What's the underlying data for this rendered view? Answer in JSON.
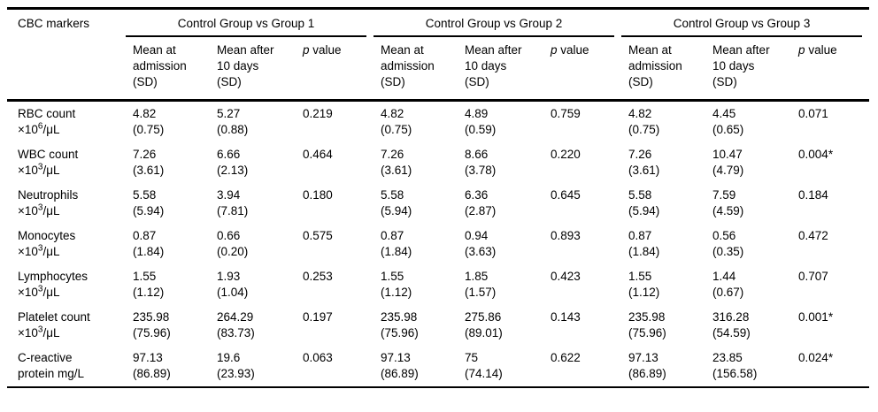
{
  "table": {
    "corner_header": "CBC markers",
    "groups": [
      {
        "label": "Control Group vs Group 1"
      },
      {
        "label": "Control Group vs Group 2"
      },
      {
        "label": "Control Group vs Group 3"
      }
    ],
    "sub_headers": {
      "admission": "Mean at admission (SD)",
      "after": "Mean after 10 days (SD)",
      "p_italic": "p",
      "p_rest": "value"
    },
    "colors": {
      "text": "#000000",
      "background": "#ffffff",
      "rule": "#000000"
    },
    "rows": [
      {
        "name": "RBC count",
        "unit_pre": "×10",
        "unit_sup": "6",
        "unit_post": "/μL",
        "groups": [
          {
            "adm_mean": "4.82",
            "adm_sd": "(0.75)",
            "after_mean": "5.27",
            "after_sd": "(0.88)",
            "p": "0.219"
          },
          {
            "adm_mean": "4.82",
            "adm_sd": "(0.75)",
            "after_mean": "4.89",
            "after_sd": "(0.59)",
            "p": "0.759"
          },
          {
            "adm_mean": "4.82",
            "adm_sd": "(0.75)",
            "after_mean": "4.45",
            "after_sd": "(0.65)",
            "p": "0.071"
          }
        ]
      },
      {
        "name": "WBC count",
        "unit_pre": "×10",
        "unit_sup": "3",
        "unit_post": "/μL",
        "groups": [
          {
            "adm_mean": "7.26",
            "adm_sd": "(3.61)",
            "after_mean": "6.66",
            "after_sd": "(2.13)",
            "p": "0.464"
          },
          {
            "adm_mean": "7.26",
            "adm_sd": "(3.61)",
            "after_mean": "8.66",
            "after_sd": "(3.78)",
            "p": "0.220"
          },
          {
            "adm_mean": "7.26",
            "adm_sd": "(3.61)",
            "after_mean": "10.47",
            "after_sd": "(4.79)",
            "p": "0.004*"
          }
        ]
      },
      {
        "name": "Neutrophils",
        "unit_pre": "×10",
        "unit_sup": "3",
        "unit_post": "/μL",
        "groups": [
          {
            "adm_mean": "5.58",
            "adm_sd": "(5.94)",
            "after_mean": "3.94",
            "after_sd": "(7.81)",
            "p": "0.180"
          },
          {
            "adm_mean": "5.58",
            "adm_sd": "(5.94)",
            "after_mean": "6.36",
            "after_sd": "(2.87)",
            "p": "0.645"
          },
          {
            "adm_mean": "5.58",
            "adm_sd": "(5.94)",
            "after_mean": "7.59",
            "after_sd": "(4.59)",
            "p": "0.184"
          }
        ]
      },
      {
        "name": "Monocytes",
        "unit_pre": "×10",
        "unit_sup": "3",
        "unit_post": "/μL",
        "groups": [
          {
            "adm_mean": "0.87",
            "adm_sd": "(1.84)",
            "after_mean": "0.66",
            "after_sd": "(0.20)",
            "p": "0.575"
          },
          {
            "adm_mean": "0.87",
            "adm_sd": "(1.84)",
            "after_mean": "0.94",
            "after_sd": "(3.63)",
            "p": "0.893"
          },
          {
            "adm_mean": "0.87",
            "adm_sd": "(1.84)",
            "after_mean": "0.56",
            "after_sd": "(0.35)",
            "p": "0.472"
          }
        ]
      },
      {
        "name": "Lymphocytes",
        "unit_pre": "×10",
        "unit_sup": "3",
        "unit_post": "/μL",
        "groups": [
          {
            "adm_mean": "1.55",
            "adm_sd": "(1.12)",
            "after_mean": "1.93",
            "after_sd": "(1.04)",
            "p": "0.253"
          },
          {
            "adm_mean": "1.55",
            "adm_sd": "(1.12)",
            "after_mean": "1.85",
            "after_sd": "(1.57)",
            "p": "0.423"
          },
          {
            "adm_mean": "1.55",
            "adm_sd": "(1.12)",
            "after_mean": "1.44",
            "after_sd": "(0.67)",
            "p": "0.707"
          }
        ]
      },
      {
        "name": "Platelet count",
        "unit_pre": "×10",
        "unit_sup": "3",
        "unit_post": "/μL",
        "groups": [
          {
            "adm_mean": "235.98",
            "adm_sd": "(75.96)",
            "after_mean": "264.29",
            "after_sd": "(83.73)",
            "p": "0.197"
          },
          {
            "adm_mean": "235.98",
            "adm_sd": "(75.96)",
            "after_mean": "275.86",
            "after_sd": "(89.01)",
            "p": "0.143"
          },
          {
            "adm_mean": "235.98",
            "adm_sd": "(75.96)",
            "after_mean": "316.28",
            "after_sd": "(54.59)",
            "p": "0.001*"
          }
        ]
      },
      {
        "name": "C-reactive protein mg/L",
        "unit_pre": "",
        "unit_sup": "",
        "unit_post": "",
        "groups": [
          {
            "adm_mean": "97.13",
            "adm_sd": "(86.89)",
            "after_mean": "19.6",
            "after_sd": "(23.93)",
            "p": "0.063"
          },
          {
            "adm_mean": "97.13",
            "adm_sd": "(86.89)",
            "after_mean": "75",
            "after_sd": "(74.14)",
            "p": "0.622"
          },
          {
            "adm_mean": "97.13",
            "adm_sd": "(86.89)",
            "after_mean": "23.85",
            "after_sd": "(156.58)",
            "p": "0.024*"
          }
        ]
      }
    ]
  }
}
